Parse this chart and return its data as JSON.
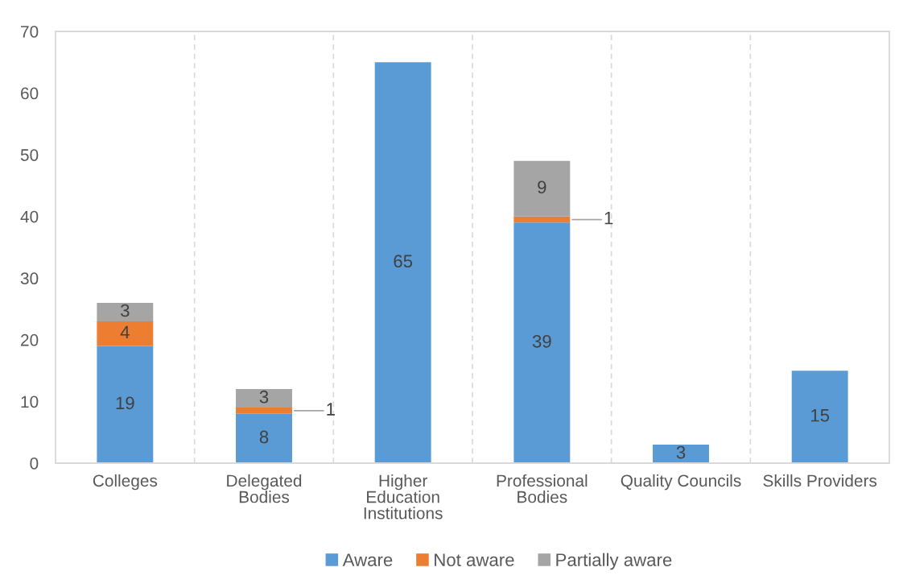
{
  "chart_data": {
    "type": "bar",
    "stacked": true,
    "categories": [
      "Colleges",
      "Delegated\nBodies",
      "Higher\nEducation\nInstitutions",
      "Professional\nBodies",
      "Quality Councils",
      "Skills Providers"
    ],
    "series": [
      {
        "name": "Aware",
        "color": "#5b9bd5",
        "values": [
          19,
          8,
          65,
          39,
          3,
          15
        ]
      },
      {
        "name": "Not aware",
        "color": "#ed7d31",
        "values": [
          4,
          1,
          null,
          1,
          null,
          null
        ]
      },
      {
        "name": "Partially aware",
        "color": "#a5a5a5",
        "values": [
          3,
          3,
          null,
          9,
          null,
          null
        ]
      }
    ],
    "ylim": [
      0,
      70
    ],
    "yticks": [
      0,
      10,
      20,
      30,
      40,
      50,
      60,
      70
    ],
    "grid": "x",
    "legend": "bottom",
    "data_labels": true
  }
}
